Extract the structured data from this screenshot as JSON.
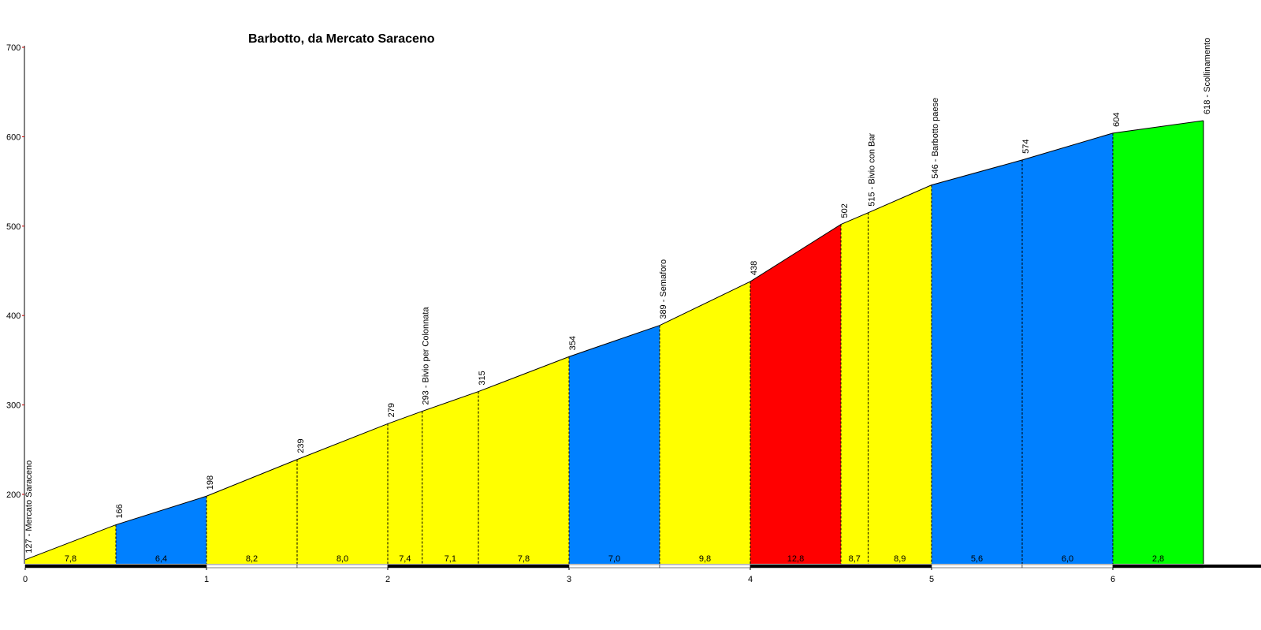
{
  "chart_data": {
    "type": "area",
    "title": "Barbotto, da Mercato Saraceno",
    "xlim": [
      0,
      6.95
    ],
    "ylim": [
      120,
      700
    ],
    "x_ticks": [
      "0",
      "1",
      "2",
      "3",
      "4",
      "5",
      "6"
    ],
    "y_ticks": [
      "200",
      "300",
      "400",
      "500",
      "600",
      "700"
    ],
    "colors": {
      "yellow": "#ffff00",
      "blue": "#0080ff",
      "red": "#ff0000",
      "green": "#00ff00"
    },
    "profile": [
      {
        "km": 0.0,
        "elev": 127,
        "label": "127 - Mercato Saraceno"
      },
      {
        "km": 0.5,
        "elev": 166,
        "label": "166"
      },
      {
        "km": 1.0,
        "elev": 198,
        "label": "198"
      },
      {
        "km": 1.5,
        "elev": 239,
        "label": "239"
      },
      {
        "km": 2.0,
        "elev": 279,
        "label": "279"
      },
      {
        "km": 2.19,
        "elev": 293,
        "label": "293 - Bivio per Colonnata"
      },
      {
        "km": 2.5,
        "elev": 315,
        "label": "315"
      },
      {
        "km": 3.0,
        "elev": 354,
        "label": "354"
      },
      {
        "km": 3.5,
        "elev": 389,
        "label": "389 - Semaforo"
      },
      {
        "km": 4.0,
        "elev": 438,
        "label": "438"
      },
      {
        "km": 4.5,
        "elev": 502,
        "label": "502"
      },
      {
        "km": 4.65,
        "elev": 515,
        "label": "515 - Bivio con Bar"
      },
      {
        "km": 5.0,
        "elev": 546,
        "label": "546 - Barbotto paese"
      },
      {
        "km": 5.5,
        "elev": 574,
        "label": "574"
      },
      {
        "km": 6.0,
        "elev": 604,
        "label": "604"
      },
      {
        "km": 6.5,
        "elev": 618,
        "label": "618 - Scollinamento"
      }
    ],
    "segments": [
      {
        "from": 0,
        "to": 1,
        "grade": "7,8",
        "color": "yellow"
      },
      {
        "from": 1,
        "to": 2,
        "grade": "6,4",
        "color": "blue"
      },
      {
        "from": 2,
        "to": 3,
        "grade": "8,2",
        "color": "yellow"
      },
      {
        "from": 3,
        "to": 4,
        "grade": "8,0",
        "color": "yellow"
      },
      {
        "from": 4,
        "to": 5,
        "grade": "7,4",
        "color": "yellow"
      },
      {
        "from": 5,
        "to": 6,
        "grade": "7,1",
        "color": "yellow"
      },
      {
        "from": 6,
        "to": 7,
        "grade": "7,8",
        "color": "yellow"
      },
      {
        "from": 7,
        "to": 8,
        "grade": "7,0",
        "color": "blue"
      },
      {
        "from": 8,
        "to": 9,
        "grade": "9,8",
        "color": "yellow"
      },
      {
        "from": 9,
        "to": 10,
        "grade": "12,8",
        "color": "red"
      },
      {
        "from": 10,
        "to": 11,
        "grade": "8,7",
        "color": "yellow"
      },
      {
        "from": 11,
        "to": 12,
        "grade": "8,9",
        "color": "yellow"
      },
      {
        "from": 12,
        "to": 13,
        "grade": "5,6",
        "color": "blue"
      },
      {
        "from": 13,
        "to": 14,
        "grade": "6,0",
        "color": "blue"
      },
      {
        "from": 14,
        "to": 15,
        "grade": "2,8",
        "color": "green"
      }
    ]
  }
}
